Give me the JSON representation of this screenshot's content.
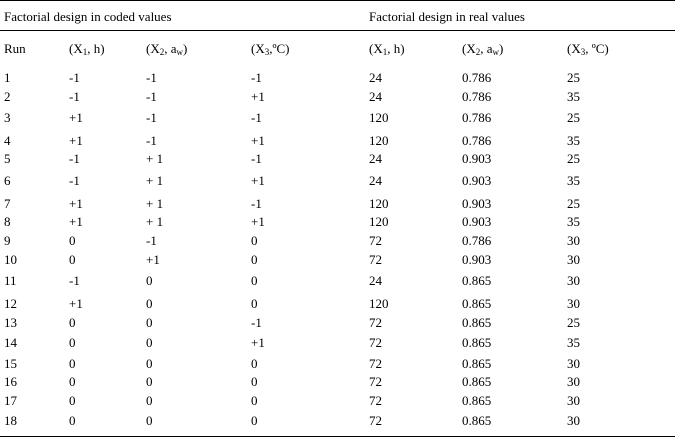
{
  "table": {
    "group_headers": {
      "coded": "Factorial design in coded values",
      "real": "Factorial design in real values"
    },
    "columns": [
      {
        "pre": "Run",
        "sub": "",
        "post": ""
      },
      {
        "pre": "(X",
        "sub": "1",
        "post": ", h)"
      },
      {
        "pre": "(X",
        "sub": "2",
        "post": ", a"
      },
      {
        "pre": "(X",
        "sub": "3",
        "post": ",ºC)"
      },
      {
        "pre": "(X",
        "sub": "1",
        "post": ", h)"
      },
      {
        "pre": "(X",
        "sub": "2",
        "post": ", a"
      },
      {
        "pre": "(X",
        "sub": "3",
        "post": ", ºC)"
      }
    ],
    "aw_sub": "w",
    "rows": [
      [
        "1",
        "-1",
        "-1",
        "-1",
        "24",
        "0.786",
        "25"
      ],
      [
        "2",
        "-1",
        "-1",
        "+1",
        "24",
        "0.786",
        "35"
      ],
      [
        "3",
        "+1",
        "-1",
        "-1",
        "120",
        "0.786",
        "25"
      ],
      [
        "4",
        "+1",
        "-1",
        "+1",
        "120",
        "0.786",
        "35"
      ],
      [
        "5",
        "-1",
        "+ 1",
        "-1",
        "24",
        "0.903",
        "25"
      ],
      [
        "6",
        "-1",
        "+ 1",
        "+1",
        "24",
        "0.903",
        "35"
      ],
      [
        "7",
        "+1",
        "+ 1",
        "-1",
        "120",
        "0.903",
        "25"
      ],
      [
        "8",
        "+1",
        "+ 1",
        "+1",
        "120",
        "0.903",
        "35"
      ],
      [
        "9",
        "0",
        "-1",
        "0",
        "72",
        "0.786",
        "30"
      ],
      [
        "10",
        "0",
        "+1",
        "0",
        "72",
        "0.903",
        "30"
      ],
      [
        "11",
        "-1",
        "0",
        "0",
        "24",
        "0.865",
        "30"
      ],
      [
        "12",
        "+1",
        "0",
        "0",
        "120",
        "0.865",
        "30"
      ],
      [
        "13",
        "0",
        "0",
        "-1",
        "72",
        "0.865",
        "25"
      ],
      [
        "14",
        "0",
        "0",
        "+1",
        "72",
        "0.865",
        "35"
      ],
      [
        "15",
        "0",
        "0",
        "0",
        "72",
        "0.865",
        "30"
      ],
      [
        "16",
        "0",
        "0",
        "0",
        "72",
        "0.865",
        "30"
      ],
      [
        "17",
        "0",
        "0",
        "0",
        "72",
        "0.865",
        "30"
      ],
      [
        "18",
        "0",
        "0",
        "0",
        "72",
        "0.865",
        "30"
      ]
    ]
  }
}
